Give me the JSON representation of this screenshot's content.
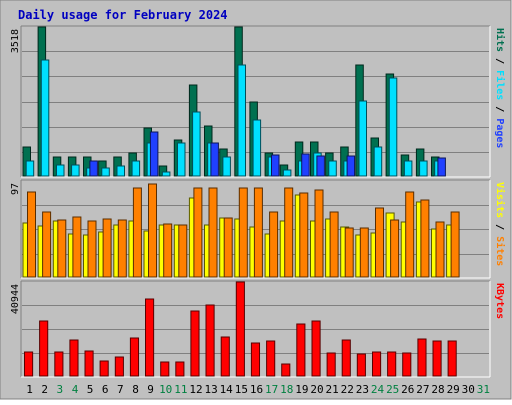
{
  "chart_data": [
    {
      "type": "bar",
      "title": "Daily usage for February 2024",
      "x": [
        "1",
        "2",
        "3",
        "4",
        "5",
        "6",
        "7",
        "8",
        "9",
        "10",
        "11",
        "12",
        "13",
        "14",
        "15",
        "16",
        "17",
        "18",
        "19",
        "20",
        "21",
        "22",
        "23",
        "24",
        "25",
        "26",
        "27",
        "28",
        "29",
        "30",
        "31"
      ],
      "weekend_days": [
        "3",
        "4",
        "10",
        "11",
        "17",
        "18",
        "24",
        "25",
        "31"
      ],
      "ymax_label": "3518",
      "ylim": [
        0,
        3518
      ],
      "right_labels": [
        "Pages",
        "Files",
        "Hits"
      ],
      "series": [
        {
          "name": "Hits",
          "color": "#007050",
          "values": [
            680,
            3518,
            450,
            450,
            450,
            360,
            450,
            540,
            1140,
            230,
            860,
            2140,
            1190,
            630,
            3518,
            1750,
            540,
            270,
            810,
            810,
            540,
            680,
            2630,
            900,
            2400,
            490,
            630,
            450,
            null,
            null,
            null
          ]
        },
        {
          "name": "Files",
          "color": "#00e0ff",
          "values": [
            360,
            2750,
            270,
            270,
            180,
            180,
            230,
            360,
            770,
            90,
            770,
            1500,
            770,
            450,
            2630,
            1320,
            450,
            130,
            360,
            540,
            360,
            360,
            1770,
            680,
            2310,
            360,
            360,
            360,
            null,
            null,
            null
          ]
        },
        {
          "name": "Pages",
          "color": "#2040ff",
          "values": [
            null,
            null,
            null,
            null,
            350,
            null,
            null,
            null,
            1030,
            null,
            null,
            null,
            790,
            null,
            null,
            null,
            500,
            null,
            530,
            470,
            null,
            480,
            null,
            null,
            null,
            null,
            null,
            430,
            null,
            null,
            null
          ]
        }
      ]
    },
    {
      "type": "bar",
      "ymax_label": "97",
      "ylim": [
        0,
        97
      ],
      "right_labels": [
        "Sites",
        "Visits"
      ],
      "series": [
        {
          "name": "Visits",
          "color": "#ffff00",
          "values": [
            55,
            52,
            57,
            43,
            42,
            45,
            53,
            57,
            46,
            53,
            53,
            80,
            53,
            60,
            59,
            51,
            43,
            57,
            83,
            57,
            59,
            51,
            42,
            44,
            65,
            56,
            76,
            48,
            53,
            null,
            null
          ]
        },
        {
          "name": "Sites",
          "color": "#ff8000",
          "values": [
            86,
            66,
            58,
            61,
            57,
            59,
            58,
            90,
            94,
            54,
            53,
            90,
            90,
            60,
            90,
            90,
            66,
            90,
            85,
            88,
            66,
            50,
            50,
            70,
            58,
            86,
            78,
            56,
            66,
            null,
            null
          ]
        }
      ]
    },
    {
      "type": "bar",
      "ymax_label": "40944",
      "ylim": [
        0,
        40944
      ],
      "right_labels": [
        "KBytes"
      ],
      "series": [
        {
          "name": "KBytes",
          "color": "#ff0000",
          "values": [
            10590,
            23970,
            10380,
            15500,
            10900,
            6470,
            8230,
            16340,
            33350,
            6040,
            6040,
            28410,
            31000,
            16940,
            40944,
            14230,
            15100,
            5130,
            22780,
            24140,
            10160,
            15500,
            9710,
            10380,
            10380,
            10170,
            16160,
            15290,
            15290,
            null,
            null
          ]
        }
      ]
    }
  ]
}
